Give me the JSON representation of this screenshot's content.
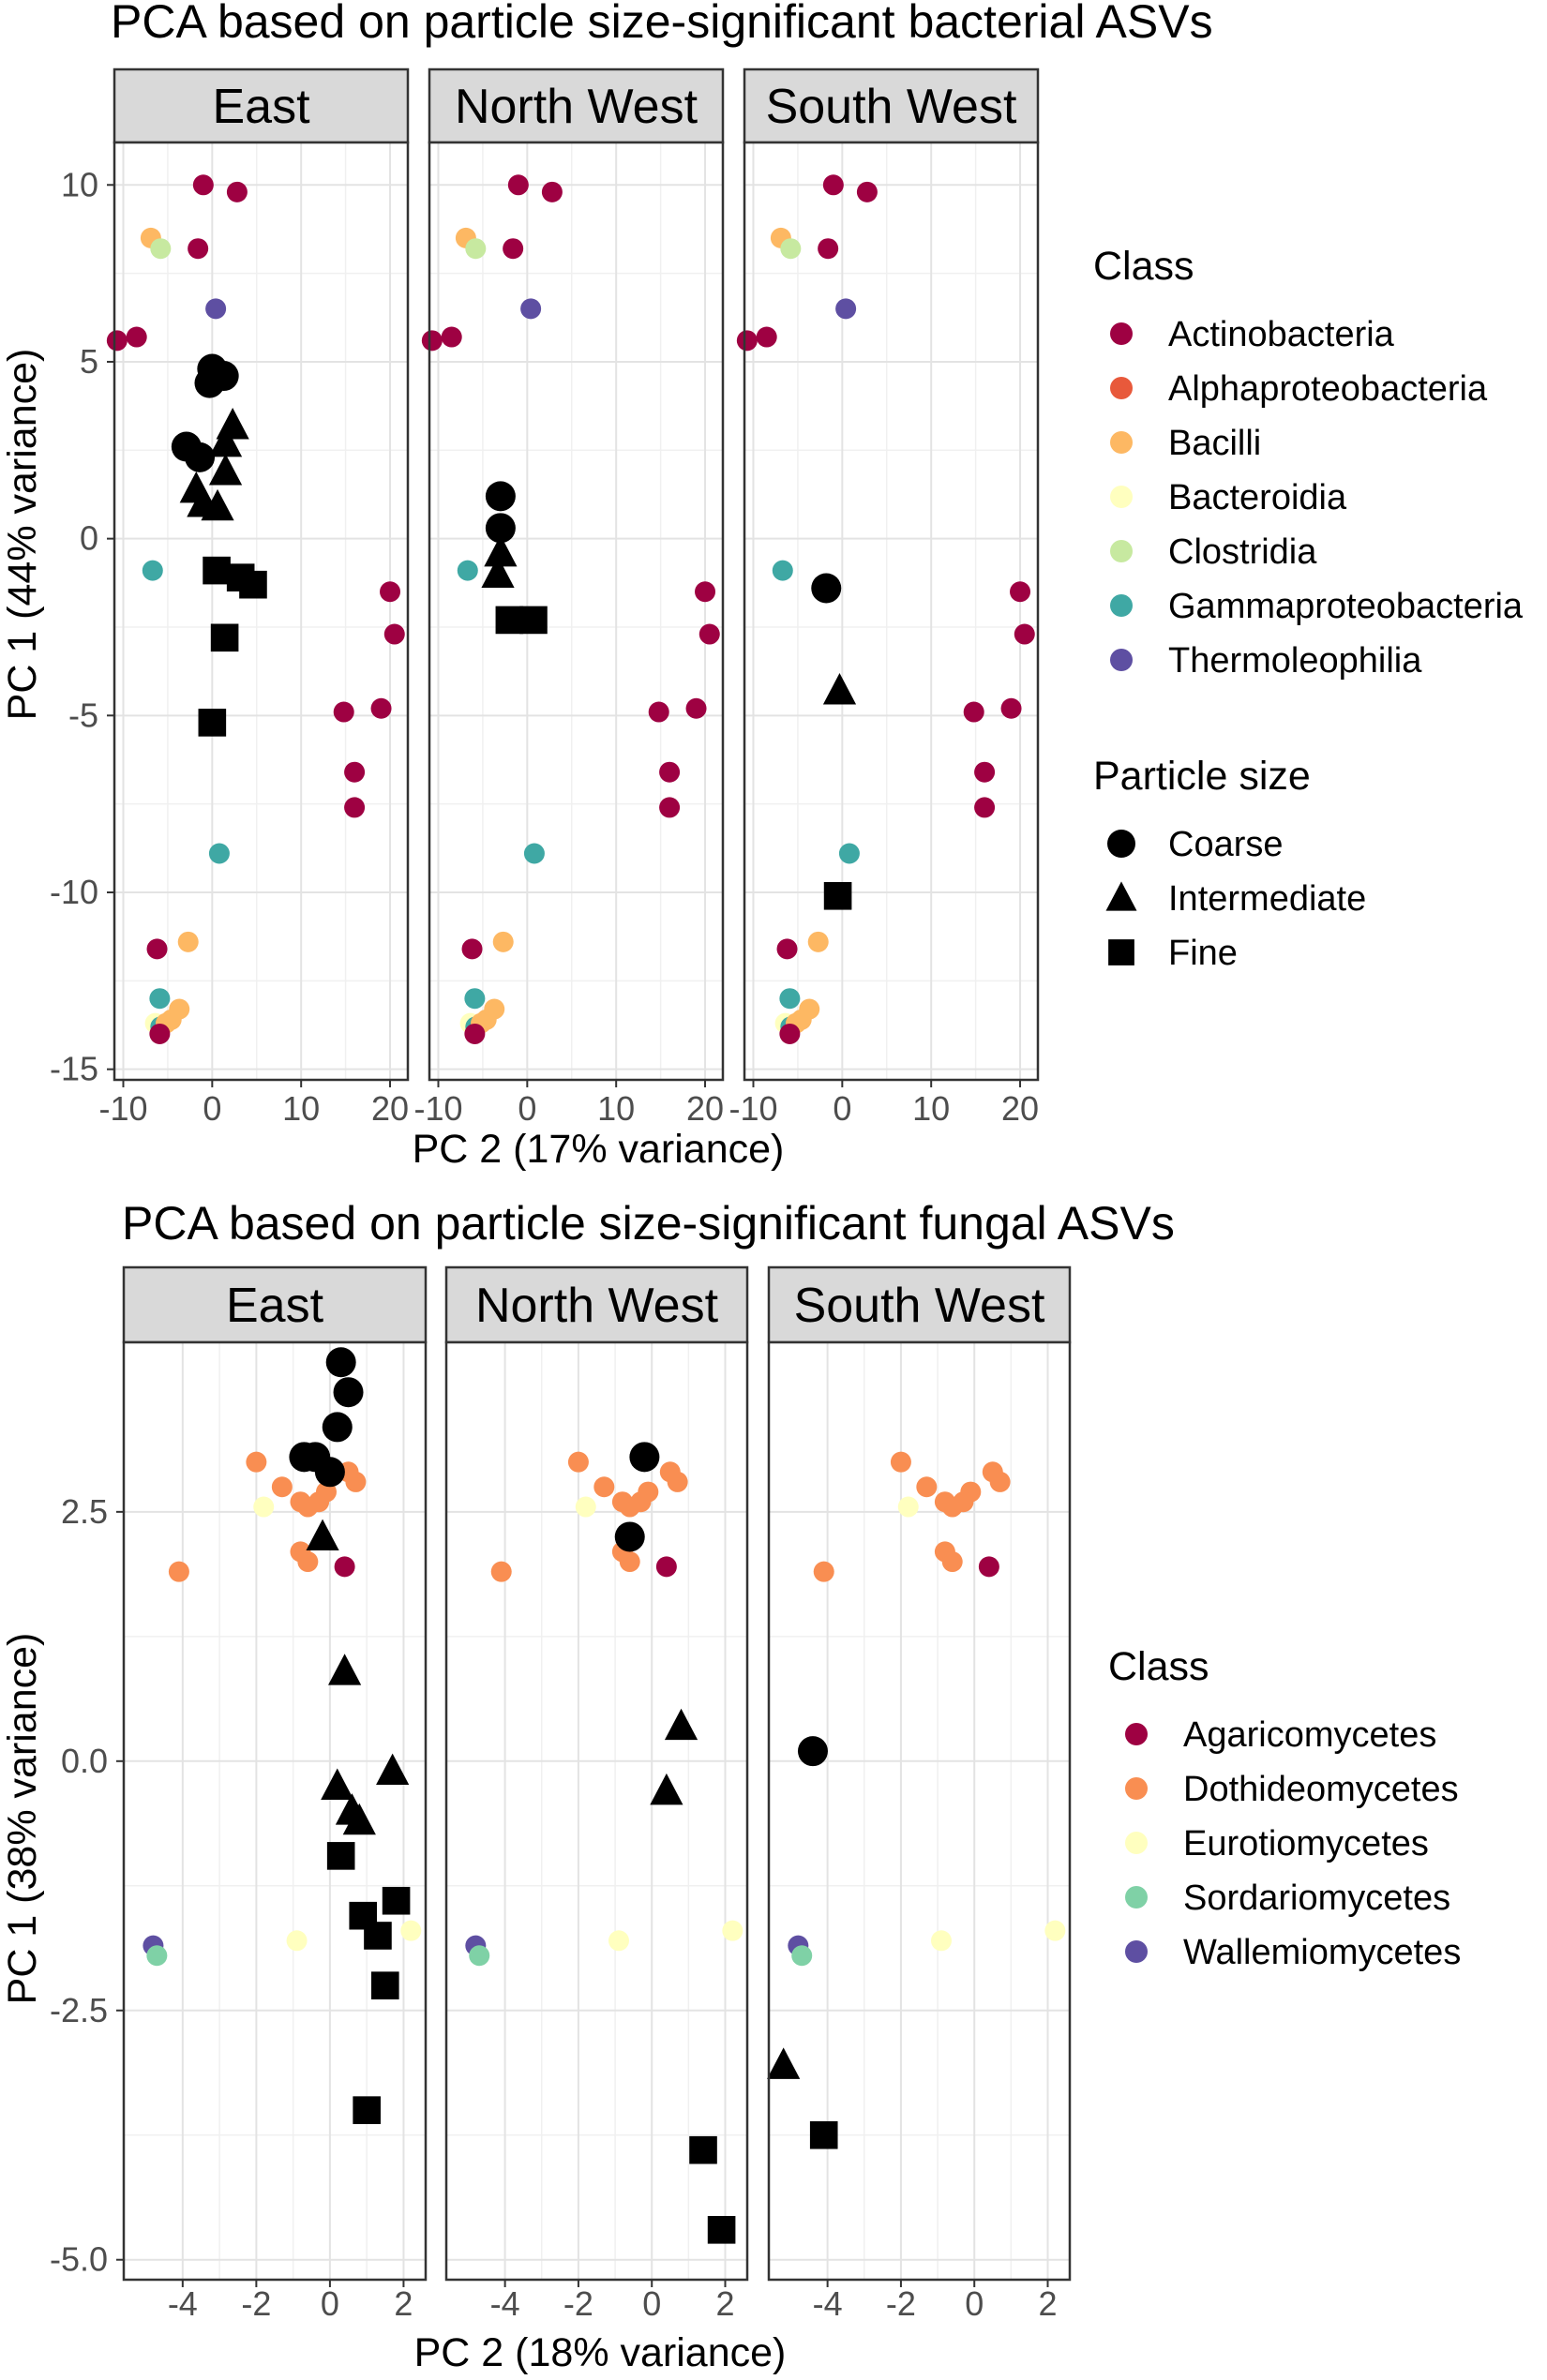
{
  "chart_data": [
    {
      "type": "scatter",
      "title": "PCA based on particle size-significant bacterial ASVs",
      "xlabel": "PC 2 (17% variance)",
      "ylabel": "PC 1 (44% variance)",
      "xlim": [
        -11,
        22
      ],
      "ylim": [
        -15.3,
        11.2
      ],
      "xticks": [
        -10,
        0,
        10,
        20
      ],
      "xtick_labels": [
        "-10",
        "0",
        "10",
        "20"
      ],
      "yticks": [
        10,
        5,
        0,
        -5,
        -10,
        -15
      ],
      "ytick_labels": [
        "10",
        "5",
        "0",
        "-5",
        "-10",
        "-15"
      ],
      "facets": [
        "East",
        "North West",
        "South West"
      ],
      "legend_class_title": "Class",
      "legend_shape_title": "Particle size",
      "classes": [
        {
          "name": "Actinobacteria",
          "color": "#9e0142"
        },
        {
          "name": "Alphaproteobacteria",
          "color": "#e8593b"
        },
        {
          "name": "Bacilli",
          "color": "#fdb863"
        },
        {
          "name": "Bacteroidia",
          "color": "#ffffbf"
        },
        {
          "name": "Clostridia",
          "color": "#c7e9a0"
        },
        {
          "name": "Gammaproteobacteria",
          "color": "#3fa8a4"
        },
        {
          "name": "Thermoleophilia",
          "color": "#5e4fa2"
        }
      ],
      "particle_sizes": [
        {
          "name": "Coarse",
          "shape": "circle"
        },
        {
          "name": "Intermediate",
          "shape": "triangle"
        },
        {
          "name": "Fine",
          "shape": "square"
        }
      ],
      "taxa_points": [
        {
          "x": -1,
          "y": 10.0,
          "class": "Actinobacteria"
        },
        {
          "x": 2.8,
          "y": 9.8,
          "class": "Actinobacteria"
        },
        {
          "x": -1.6,
          "y": 8.2,
          "class": "Actinobacteria"
        },
        {
          "x": -6.9,
          "y": 8.5,
          "class": "Bacilli"
        },
        {
          "x": -5.8,
          "y": 8.2,
          "class": "Clostridia"
        },
        {
          "x": 0.4,
          "y": 6.5,
          "class": "Thermoleophilia"
        },
        {
          "x": -10.7,
          "y": 5.6,
          "class": "Actinobacteria"
        },
        {
          "x": -8.5,
          "y": 5.7,
          "class": "Actinobacteria"
        },
        {
          "x": -6.7,
          "y": -0.9,
          "class": "Gammaproteobacteria"
        },
        {
          "x": 20.0,
          "y": -1.5,
          "class": "Actinobacteria"
        },
        {
          "x": 20.5,
          "y": -2.7,
          "class": "Actinobacteria"
        },
        {
          "x": 14.8,
          "y": -4.9,
          "class": "Actinobacteria"
        },
        {
          "x": 19.0,
          "y": -4.8,
          "class": "Actinobacteria"
        },
        {
          "x": 16.0,
          "y": -6.6,
          "class": "Actinobacteria"
        },
        {
          "x": 16.0,
          "y": -7.6,
          "class": "Actinobacteria"
        },
        {
          "x": 0.8,
          "y": -8.9,
          "class": "Gammaproteobacteria"
        },
        {
          "x": -6.2,
          "y": -11.6,
          "class": "Actinobacteria"
        },
        {
          "x": -2.7,
          "y": -11.4,
          "class": "Bacilli"
        },
        {
          "x": -5.9,
          "y": -13.0,
          "class": "Gammaproteobacteria"
        },
        {
          "x": -3.7,
          "y": -13.3,
          "class": "Bacilli"
        },
        {
          "x": -4.6,
          "y": -13.6,
          "class": "Bacilli"
        },
        {
          "x": -6.4,
          "y": -13.7,
          "class": "Bacteroidia"
        },
        {
          "x": -5.8,
          "y": -13.8,
          "class": "Gammaproteobacteria"
        },
        {
          "x": -5.2,
          "y": -13.7,
          "class": "Bacilli"
        },
        {
          "x": -5.9,
          "y": -14.0,
          "class": "Actinobacteria"
        }
      ],
      "sample_points": {
        "East": [
          {
            "x": 0.0,
            "y": 4.8,
            "size": "Coarse"
          },
          {
            "x": 1.3,
            "y": 4.6,
            "size": "Coarse"
          },
          {
            "x": -0.3,
            "y": 4.4,
            "size": "Coarse"
          },
          {
            "x": -2.9,
            "y": 2.6,
            "size": "Coarse"
          },
          {
            "x": -1.4,
            "y": 2.3,
            "size": "Coarse"
          },
          {
            "x": 2.3,
            "y": 3.2,
            "size": "Intermediate"
          },
          {
            "x": 1.5,
            "y": 2.7,
            "size": "Intermediate"
          },
          {
            "x": 1.5,
            "y": 1.9,
            "size": "Intermediate"
          },
          {
            "x": -1.8,
            "y": 1.4,
            "size": "Intermediate"
          },
          {
            "x": -1.0,
            "y": 1.0,
            "size": "Intermediate"
          },
          {
            "x": 0.6,
            "y": 0.9,
            "size": "Intermediate"
          },
          {
            "x": 0.5,
            "y": -0.9,
            "size": "Fine"
          },
          {
            "x": 3.2,
            "y": -1.1,
            "size": "Fine"
          },
          {
            "x": 4.6,
            "y": -1.3,
            "size": "Fine"
          },
          {
            "x": 1.4,
            "y": -2.8,
            "size": "Fine"
          },
          {
            "x": 0.0,
            "y": -5.2,
            "size": "Fine"
          }
        ],
        "North West": [
          {
            "x": -3.0,
            "y": 1.2,
            "size": "Coarse"
          },
          {
            "x": -3.0,
            "y": 0.3,
            "size": "Coarse"
          },
          {
            "x": -3.0,
            "y": -0.4,
            "size": "Intermediate"
          },
          {
            "x": -3.3,
            "y": -1.0,
            "size": "Intermediate"
          },
          {
            "x": -2.0,
            "y": -2.3,
            "size": "Fine"
          },
          {
            "x": 0.7,
            "y": -2.3,
            "size": "Fine"
          }
        ],
        "South West": [
          {
            "x": -1.8,
            "y": -1.4,
            "size": "Coarse"
          },
          {
            "x": -0.3,
            "y": -4.3,
            "size": "Intermediate"
          },
          {
            "x": -0.5,
            "y": -10.1,
            "size": "Fine"
          }
        ]
      }
    },
    {
      "type": "scatter",
      "title": "PCA based on particle size-significant fungal ASVs",
      "xlabel": "PC 2 (18% variance)",
      "ylabel": "PC 1 (38% variance)",
      "xlim": [
        -5.6,
        2.6
      ],
      "ylim": [
        -5.2,
        4.2
      ],
      "xticks": [
        -4,
        -2,
        0,
        2
      ],
      "xtick_labels": [
        "-4",
        "-2",
        "0",
        "2"
      ],
      "yticks": [
        2.5,
        0.0,
        -2.5,
        -5.0
      ],
      "ytick_labels": [
        "2.5",
        "0.0",
        "-2.5",
        "-5.0"
      ],
      "facets": [
        "East",
        "North West",
        "South West"
      ],
      "legend_class_title": "Class",
      "classes": [
        {
          "name": "Agaricomycetes",
          "color": "#9e0142"
        },
        {
          "name": "Dothideomycetes",
          "color": "#f98e52"
        },
        {
          "name": "Eurotiomycetes",
          "color": "#ffffbf"
        },
        {
          "name": "Sordariomycetes",
          "color": "#7fd1a6"
        },
        {
          "name": "Wallemiomycetes",
          "color": "#5e4fa2"
        }
      ],
      "taxa_points": [
        {
          "x": -2.0,
          "y": 3.0,
          "class": "Dothideomycetes"
        },
        {
          "x": 0.5,
          "y": 2.9,
          "class": "Dothideomycetes"
        },
        {
          "x": 0.7,
          "y": 2.8,
          "class": "Dothideomycetes"
        },
        {
          "x": -1.3,
          "y": 2.75,
          "class": "Dothideomycetes"
        },
        {
          "x": -0.1,
          "y": 2.7,
          "class": "Dothideomycetes"
        },
        {
          "x": -0.3,
          "y": 2.6,
          "class": "Dothideomycetes"
        },
        {
          "x": -0.8,
          "y": 2.6,
          "class": "Dothideomycetes"
        },
        {
          "x": -0.6,
          "y": 2.55,
          "class": "Dothideomycetes"
        },
        {
          "x": -1.8,
          "y": 2.55,
          "class": "Eurotiomycetes"
        },
        {
          "x": -0.8,
          "y": 2.1,
          "class": "Dothideomycetes"
        },
        {
          "x": -0.6,
          "y": 2.0,
          "class": "Dothideomycetes"
        },
        {
          "x": 0.4,
          "y": 1.95,
          "class": "Agaricomycetes"
        },
        {
          "x": -4.1,
          "y": 1.9,
          "class": "Dothideomycetes"
        },
        {
          "x": -0.9,
          "y": -1.8,
          "class": "Eurotiomycetes"
        },
        {
          "x": 2.2,
          "y": -1.7,
          "class": "Eurotiomycetes"
        },
        {
          "x": -4.8,
          "y": -1.85,
          "class": "Wallemiomycetes"
        },
        {
          "x": -4.7,
          "y": -1.95,
          "class": "Sordariomycetes"
        }
      ],
      "sample_points": {
        "East": [
          {
            "x": 0.3,
            "y": 4.0,
            "size": "Coarse"
          },
          {
            "x": 0.5,
            "y": 3.7,
            "size": "Coarse"
          },
          {
            "x": 0.2,
            "y": 3.35,
            "size": "Coarse"
          },
          {
            "x": -0.7,
            "y": 3.05,
            "size": "Coarse"
          },
          {
            "x": -0.4,
            "y": 3.05,
            "size": "Coarse"
          },
          {
            "x": 0.0,
            "y": 2.9,
            "size": "Coarse"
          },
          {
            "x": -0.2,
            "y": 2.25,
            "size": "Intermediate"
          },
          {
            "x": 0.4,
            "y": 0.9,
            "size": "Intermediate"
          },
          {
            "x": 1.7,
            "y": -0.1,
            "size": "Intermediate"
          },
          {
            "x": 0.2,
            "y": -0.25,
            "size": "Intermediate"
          },
          {
            "x": 0.8,
            "y": -0.6,
            "size": "Intermediate"
          },
          {
            "x": 0.6,
            "y": -0.5,
            "size": "Intermediate"
          },
          {
            "x": 0.3,
            "y": -0.95,
            "size": "Fine"
          },
          {
            "x": 1.8,
            "y": -1.4,
            "size": "Fine"
          },
          {
            "x": 0.9,
            "y": -1.55,
            "size": "Fine"
          },
          {
            "x": 1.3,
            "y": -1.75,
            "size": "Fine"
          },
          {
            "x": 1.5,
            "y": -2.25,
            "size": "Fine"
          },
          {
            "x": 1.0,
            "y": -3.5,
            "size": "Fine"
          }
        ],
        "North West": [
          {
            "x": -0.2,
            "y": 3.05,
            "size": "Coarse"
          },
          {
            "x": -0.6,
            "y": 2.25,
            "size": "Coarse"
          },
          {
            "x": 0.8,
            "y": 0.35,
            "size": "Intermediate"
          },
          {
            "x": 0.4,
            "y": -0.3,
            "size": "Intermediate"
          },
          {
            "x": 1.4,
            "y": -3.9,
            "size": "Fine"
          },
          {
            "x": 1.9,
            "y": -4.7,
            "size": "Fine"
          }
        ],
        "South West": [
          {
            "x": -4.4,
            "y": 0.1,
            "size": "Coarse"
          },
          {
            "x": -5.2,
            "y": -3.05,
            "size": "Intermediate"
          },
          {
            "x": -4.1,
            "y": -3.75,
            "size": "Fine"
          }
        ]
      }
    }
  ]
}
